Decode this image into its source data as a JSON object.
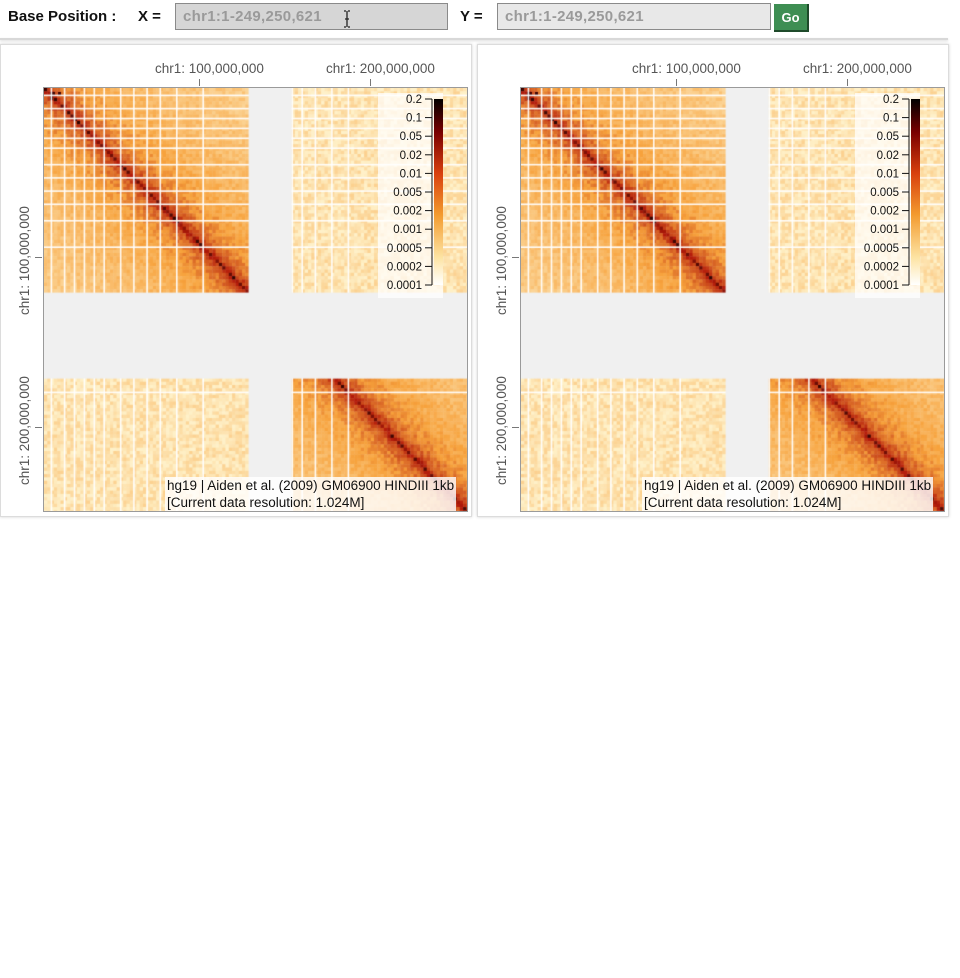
{
  "toolbar": {
    "base_position_label": "Base Position :",
    "x_label": "X =",
    "y_label": "Y =",
    "x_value": "chr1:1-249,250,621",
    "y_value": "chr1:1-249,250,621",
    "go_label": "Go"
  },
  "heatmaps": [
    {
      "x_ticks": [
        "chr1: 100,000,000",
        "chr1: 200,000,000"
      ],
      "y_ticks": [
        "chr1: 100,000,000",
        "chr1: 200,000,000"
      ],
      "legend_values": [
        "0.2",
        "0.1",
        "0.05",
        "0.02",
        "0.01",
        "0.005",
        "0.002",
        "0.001",
        "0.0005",
        "0.0002",
        "0.0001"
      ],
      "info_line1": "hg19 | Aiden et al. (2009) GM06900 HINDIII 1kb",
      "info_line2": "[Current data resolution: 1.024M]"
    },
    {
      "x_ticks": [
        "chr1: 100,000,000",
        "chr1: 200,000,000"
      ],
      "y_ticks": [
        "chr1: 100,000,000",
        "chr1: 200,000,000"
      ],
      "legend_values": [
        "0.2",
        "0.1",
        "0.05",
        "0.02",
        "0.01",
        "0.005",
        "0.002",
        "0.001",
        "0.0005",
        "0.0002",
        "0.0001"
      ],
      "info_line1": "hg19 | Aiden et al. (2009) GM06900 HINDIII 1kb",
      "info_line2": "[Current data resolution: 1.024M]"
    }
  ],
  "colors": {
    "go_button": "#3e8e53",
    "heat_low": "#fff1c8",
    "heat_mid": "#f7a23c",
    "heat_high": "#b31a0a",
    "heat_max": "#1a0000"
  }
}
